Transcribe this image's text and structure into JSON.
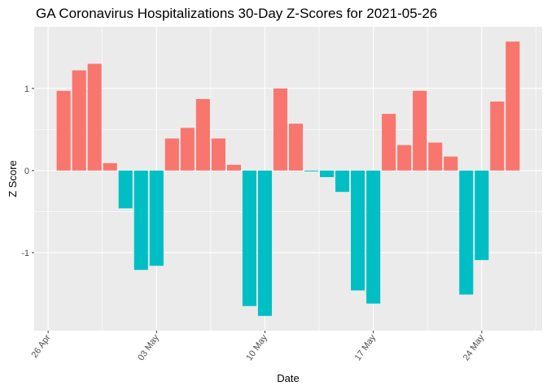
{
  "chart_data": {
    "type": "bar",
    "title": "GA Coronavirus Hospitalizations 30-Day Z-Scores for 2021-05-26",
    "xlabel": "Date",
    "ylabel": "Z Score",
    "x_tick_labels": [
      "26 Apr",
      "03 May",
      "10 May",
      "17 May",
      "24 May"
    ],
    "y_tick_labels": [
      "-1",
      "0",
      "1"
    ],
    "y_ticks": [
      -1,
      0,
      1
    ],
    "ylim": [
      -1.95,
      1.75
    ],
    "grid": true,
    "legend": "none",
    "colors": {
      "positive": "#F8766D",
      "negative": "#00BFC4",
      "panel": "#EBEBEB",
      "grid": "#FFFFFF"
    },
    "categories": [
      "2021-04-27",
      "2021-04-28",
      "2021-04-29",
      "2021-04-30",
      "2021-05-01",
      "2021-05-02",
      "2021-05-03",
      "2021-05-04",
      "2021-05-05",
      "2021-05-06",
      "2021-05-07",
      "2021-05-08",
      "2021-05-09",
      "2021-05-10",
      "2021-05-11",
      "2021-05-12",
      "2021-05-13",
      "2021-05-14",
      "2021-05-15",
      "2021-05-16",
      "2021-05-17",
      "2021-05-18",
      "2021-05-19",
      "2021-05-20",
      "2021-05-21",
      "2021-05-22",
      "2021-05-23",
      "2021-05-24",
      "2021-05-25",
      "2021-05-26"
    ],
    "values": [
      0.97,
      1.22,
      1.3,
      0.09,
      -0.46,
      -1.21,
      -1.16,
      0.39,
      0.52,
      0.87,
      0.39,
      0.07,
      -1.65,
      -1.77,
      1.0,
      0.57,
      -0.01,
      -0.08,
      -0.26,
      -1.46,
      -1.62,
      0.69,
      0.31,
      0.97,
      0.34,
      0.17,
      -1.51,
      -1.09,
      0.84,
      1.57
    ]
  }
}
